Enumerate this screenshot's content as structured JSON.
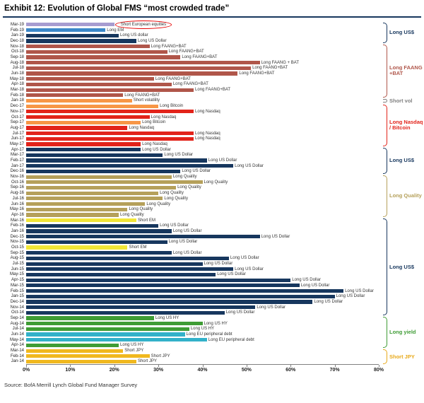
{
  "title": "Exhibit 12: Evolution of Global FMS “most crowded trade”",
  "source": "Source:  BofA Merrill Lynch Global Fund Manager Survey",
  "chart_data": {
    "type": "bar",
    "orientation": "horizontal",
    "title": "Exhibit 12: Evolution of Global FMS “most crowded trade”",
    "xlabel": "",
    "ylabel": "",
    "xlim": [
      0,
      80
    ],
    "x_ticks": [
      "0%",
      "10%",
      "20%",
      "30%",
      "40%",
      "50%",
      "60%",
      "70%",
      "80%"
    ],
    "grid": false,
    "legend": "right-side group brackets",
    "annotation": {
      "row": "Mar-19",
      "text": "Short European equities",
      "style": "red-ellipse"
    },
    "palette": {
      "shortEU": "#a79cd0",
      "em": "#3a87c8",
      "usd": "#17375e",
      "faang": "#b0564a",
      "vol": "#f79646",
      "btc": "#f79646",
      "nasdaq": "#e2231a",
      "quality": "#b5a05a",
      "shortEM": "#f2e637",
      "hy": "#3f9c35",
      "periph": "#33b1c9",
      "jpy": "#f0b81f"
    },
    "rows": [
      {
        "month": "Mar-19",
        "label": "Short European equities",
        "value": 20,
        "color": "shortEU",
        "annotated": true
      },
      {
        "month": "Feb-19",
        "label": "Long EM",
        "value": 18,
        "color": "em"
      },
      {
        "month": "Jan-19",
        "label": "Long US dollar",
        "value": 21,
        "color": "usd"
      },
      {
        "month": "Dec-18",
        "label": "Long US Dollar",
        "value": 25,
        "color": "usd"
      },
      {
        "month": "Nov-18",
        "label": "Long FAANG+BAT",
        "value": 28,
        "color": "faang"
      },
      {
        "month": "Oct-18",
        "label": "Long FAANG+BAT",
        "value": 32,
        "color": "faang"
      },
      {
        "month": "Sep-18",
        "label": "Long FAANG+BAT",
        "value": 35,
        "color": "faang"
      },
      {
        "month": "Aug-18",
        "label": "Long FAANG + BAT",
        "value": 53,
        "color": "faang"
      },
      {
        "month": "Jul-18",
        "label": "Long FAANG+BAT",
        "value": 51,
        "color": "faang"
      },
      {
        "month": "Jun-18",
        "label": "Long FAANG+BAT",
        "value": 48,
        "color": "faang"
      },
      {
        "month": "May-18",
        "label": "Long FAANG+BAT",
        "value": 29,
        "color": "faang"
      },
      {
        "month": "Apr-18",
        "label": "Long FAANG+BAT",
        "value": 33,
        "color": "faang"
      },
      {
        "month": "Mar-18",
        "label": "Long FAANG+BAT",
        "value": 38,
        "color": "faang"
      },
      {
        "month": "Feb-18",
        "label": "Long FAANG+BAT",
        "value": 22,
        "color": "faang"
      },
      {
        "month": "Jan-18",
        "label": "Short volatility",
        "value": 24,
        "color": "vol"
      },
      {
        "month": "Dec-17",
        "label": "Long Bitcoin",
        "value": 30,
        "color": "btc"
      },
      {
        "month": "Nov-17",
        "label": "Long Nasdaq",
        "value": 38,
        "color": "nasdaq"
      },
      {
        "month": "Oct-17",
        "label": "Long Nasdaq",
        "value": 28,
        "color": "nasdaq"
      },
      {
        "month": "Sep-17",
        "label": "Long Bitcoin",
        "value": 26,
        "color": "btc"
      },
      {
        "month": "Aug-17",
        "label": "Long Nasdaq",
        "value": 23,
        "color": "nasdaq"
      },
      {
        "month": "Jul-17",
        "label": "Long Nasdaq",
        "value": 38,
        "color": "nasdaq"
      },
      {
        "month": "Jun-17",
        "label": "Long Nasdaq",
        "value": 38,
        "color": "nasdaq"
      },
      {
        "month": "May-17",
        "label": "Long Nasdaq",
        "value": 26,
        "color": "nasdaq"
      },
      {
        "month": "Apr-17",
        "label": "Long US Dollar",
        "value": 26,
        "color": "usd"
      },
      {
        "month": "Mar-17",
        "label": "Long US Dollar",
        "value": 31,
        "color": "usd"
      },
      {
        "month": "Feb-17",
        "label": "Long US Dollar",
        "value": 41,
        "color": "usd"
      },
      {
        "month": "Jan-17",
        "label": "Long US Dollar",
        "value": 47,
        "color": "usd"
      },
      {
        "month": "Dec-16",
        "label": "Long US Dollar",
        "value": 35,
        "color": "usd"
      },
      {
        "month": "Nov-16",
        "label": "Long Quality",
        "value": 33,
        "color": "quality"
      },
      {
        "month": "Oct-16",
        "label": "Long Quality",
        "value": 40,
        "color": "quality"
      },
      {
        "month": "Sep-16",
        "label": "Long Quality",
        "value": 34,
        "color": "quality"
      },
      {
        "month": "Aug-16",
        "label": "Long Quality",
        "value": 30,
        "color": "quality"
      },
      {
        "month": "Jul-16",
        "label": "Long Quality",
        "value": 31,
        "color": "quality"
      },
      {
        "month": "Jun-16",
        "label": "Long Quality",
        "value": 27,
        "color": "quality"
      },
      {
        "month": "May-16",
        "label": "Long Quality",
        "value": 23,
        "color": "quality"
      },
      {
        "month": "Apr-16",
        "label": "Long Quality",
        "value": 21,
        "color": "quality"
      },
      {
        "month": "Mar-16",
        "label": "Short EM",
        "value": 25,
        "color": "shortEM"
      },
      {
        "month": "Feb-16",
        "label": "Long US Dollar",
        "value": 30,
        "color": "usd"
      },
      {
        "month": "Jan-16",
        "label": "Long US Dollar",
        "value": 33,
        "color": "usd"
      },
      {
        "month": "Dec-15",
        "label": "Long US Dollar",
        "value": 53,
        "color": "usd"
      },
      {
        "month": "Nov-15",
        "label": "Long US Dollar",
        "value": 32,
        "color": "usd"
      },
      {
        "month": "Oct-15",
        "label": "Short EM",
        "value": 23,
        "color": "shortEM"
      },
      {
        "month": "Sep-15",
        "label": "Long US Dollar",
        "value": 33,
        "color": "usd"
      },
      {
        "month": "Aug-15",
        "label": "Long US Dollar",
        "value": 46,
        "color": "usd"
      },
      {
        "month": "Jul-15",
        "label": "Long US Dollar",
        "value": 40,
        "color": "usd"
      },
      {
        "month": "Jun-15",
        "label": "Long US Dollar",
        "value": 47,
        "color": "usd"
      },
      {
        "month": "May-15",
        "label": "Long US Dollar",
        "value": 43,
        "color": "usd"
      },
      {
        "month": "Apr-15",
        "label": "Long US Dollar",
        "value": 60,
        "color": "usd"
      },
      {
        "month": "Mar-15",
        "label": "Long US Dollar",
        "value": 62,
        "color": "usd"
      },
      {
        "month": "Feb-15",
        "label": "Long US Dollar",
        "value": 72,
        "color": "usd"
      },
      {
        "month": "Jan-15",
        "label": "Long US Dollar",
        "value": 70,
        "color": "usd"
      },
      {
        "month": "Dec-14",
        "label": "Long US Dollar",
        "value": 65,
        "color": "usd"
      },
      {
        "month": "Nov-14",
        "label": "Long US Dollar",
        "value": 52,
        "color": "usd"
      },
      {
        "month": "Oct-14",
        "label": "Long US Dollar",
        "value": 45,
        "color": "usd"
      },
      {
        "month": "Sep-14",
        "label": "Long US HY",
        "value": 29,
        "color": "hy"
      },
      {
        "month": "Aug-14",
        "label": "Long US HY",
        "value": 40,
        "color": "hy"
      },
      {
        "month": "Jul-14",
        "label": "Long US HY",
        "value": 37,
        "color": "hy"
      },
      {
        "month": "Jun-14",
        "label": "Long EU peripheral debt",
        "value": 36,
        "color": "periph"
      },
      {
        "month": "May-14",
        "label": "Long EU peripheral debt",
        "value": 41,
        "color": "periph"
      },
      {
        "month": "Apr-14",
        "label": "Long US HY",
        "value": 21,
        "color": "hy"
      },
      {
        "month": "Mar-14",
        "label": "Short JPY",
        "value": 22,
        "color": "jpy"
      },
      {
        "month": "Feb-14",
        "label": "Short JPY",
        "value": 28,
        "color": "jpy"
      },
      {
        "month": "Jan-14",
        "label": "Short JPY",
        "value": 25,
        "color": "jpy"
      }
    ],
    "groups": [
      {
        "label": "Long US$",
        "color": "#17375e",
        "start": 0,
        "end": 3
      },
      {
        "label": "Long FAANG +BAT",
        "color": "#b0564a",
        "start": 4,
        "end": 13
      },
      {
        "label": "Short vol",
        "color": "#7f7f7f",
        "start": 14,
        "end": 14
      },
      {
        "label": "Long Nasdaq / Bitcoin",
        "color": "#e2231a",
        "start": 15,
        "end": 22
      },
      {
        "label": "Long US$",
        "color": "#17375e",
        "start": 23,
        "end": 27
      },
      {
        "label": "Long Quality",
        "color": "#b5a05a",
        "start": 28,
        "end": 35
      },
      {
        "label": "Long US$",
        "color": "#17375e",
        "start": 36,
        "end": 53
      },
      {
        "label": "Long yield",
        "color": "#3f9c35",
        "start": 54,
        "end": 59
      },
      {
        "label": "Short JPY",
        "color": "#e8a91a",
        "start": 60,
        "end": 62
      }
    ]
  }
}
